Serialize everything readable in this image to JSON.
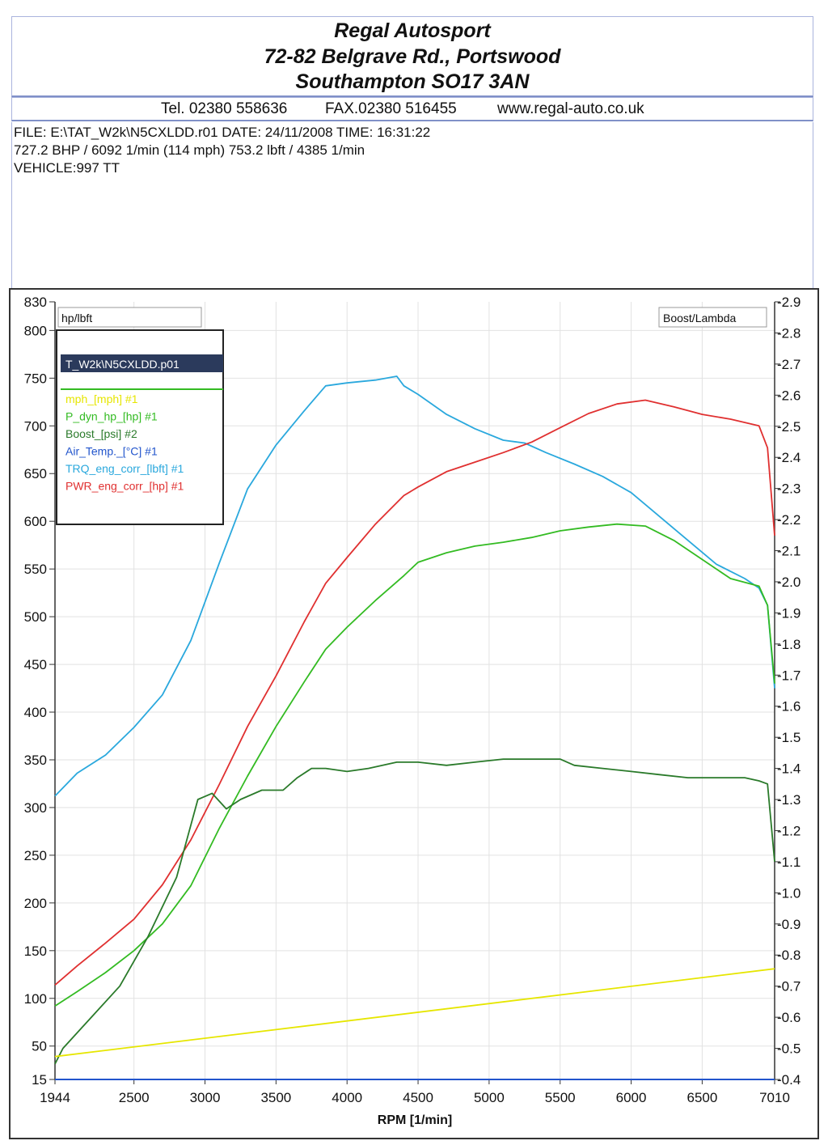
{
  "header": {
    "company": "Regal Autosport",
    "address1": "72-82 Belgrave Rd., Portswood",
    "address2": "Southampton SO17 3AN",
    "tel": "Tel. 02380 558636",
    "fax": "FAX.02380 516455",
    "web": "www.regal-auto.co.uk"
  },
  "info": {
    "line1": "FILE: E:\\TAT_W2k\\N5CXLDD.r01  DATE: 24/11/2008  TIME: 16:31:22",
    "line2": "727.2 BHP / 6092 1/min (114 mph)    753.2 lbft / 4385 1/min",
    "line3": "VEHICLE:997 TT"
  },
  "legend": {
    "left_axis_box": "hp/lbft",
    "right_axis_box": "Boost/Lambda",
    "file_entry": "T_W2k\\N5CXLDD.p01",
    "entries": [
      {
        "label": "mph_[mph] #1",
        "color": "#e6e600"
      },
      {
        "label": "P_dyn_hp_[hp] #1",
        "color": "#33bb22"
      },
      {
        "label": "Boost_[psi] #2",
        "color": "#2a7a2a"
      },
      {
        "label": "Air_Temp._[°C] #1",
        "color": "#2255cc"
      },
      {
        "label": "TRQ_eng_corr_[lbft] #1",
        "color": "#2aa8dd"
      },
      {
        "label": "PWR_eng_corr_[hp] #1",
        "color": "#e03030"
      }
    ]
  },
  "chart_data": {
    "type": "line",
    "xlabel": "RPM  [1/min]",
    "ylabel": "hp/lbft",
    "y2label": "Boost/Lambda",
    "xlim": [
      1944,
      7010
    ],
    "ylim": [
      15,
      830
    ],
    "y2lim": [
      -0.4,
      -2.9
    ],
    "x_ticks": [
      1944,
      2500,
      3000,
      3500,
      4000,
      4500,
      5000,
      5500,
      6000,
      6500,
      7010
    ],
    "y_ticks": [
      15,
      50,
      100,
      150,
      200,
      250,
      300,
      350,
      400,
      450,
      500,
      550,
      600,
      650,
      700,
      750,
      800,
      830
    ],
    "y2_ticks": [
      "-0.4",
      "-0.5",
      "-0.6",
      "-0.7",
      "-0.8",
      "-0.9",
      "-1.0",
      "-1.1",
      "-1.2",
      "-1.3",
      "-1.4",
      "-1.5",
      "-1.6",
      "-1.7",
      "-1.8",
      "-1.9",
      "-2.0",
      "-2.1",
      "-2.2",
      "-2.3",
      "-2.4",
      "-2.5",
      "-2.6",
      "-2.7",
      "-2.8",
      "-2.9"
    ],
    "grid": true,
    "series": [
      {
        "name": "TRQ_eng_corr_[lbft] #1",
        "color": "#2aa8dd",
        "x": [
          1944,
          2100,
          2300,
          2500,
          2700,
          2900,
          3100,
          3300,
          3500,
          3700,
          3850,
          4000,
          4200,
          4350,
          4400,
          4500,
          4700,
          4900,
          5100,
          5250,
          5400,
          5600,
          5800,
          6000,
          6200,
          6400,
          6600,
          6800,
          6900,
          6960,
          7010
        ],
        "y": [
          312,
          336,
          355,
          384,
          418,
          475,
          556,
          634,
          680,
          716,
          742,
          745,
          748,
          752,
          742,
          733,
          712,
          697,
          685,
          682,
          672,
          660,
          647,
          630,
          605,
          580,
          555,
          540,
          530,
          512,
          425
        ]
      },
      {
        "name": "PWR_eng_corr_[hp] #1",
        "color": "#e03030",
        "x": [
          1944,
          2100,
          2300,
          2500,
          2700,
          2900,
          3100,
          3300,
          3500,
          3700,
          3850,
          4000,
          4200,
          4400,
          4500,
          4700,
          4900,
          5100,
          5300,
          5500,
          5700,
          5900,
          6100,
          6300,
          6500,
          6700,
          6900,
          6960,
          7010
        ],
        "y": [
          114,
          134,
          158,
          183,
          219,
          266,
          324,
          385,
          438,
          495,
          535,
          562,
          597,
          627,
          636,
          652,
          662,
          672,
          683,
          698,
          713,
          723,
          727,
          720,
          712,
          707,
          700,
          677,
          585
        ]
      },
      {
        "name": "P_dyn_hp_[hp] #1",
        "color": "#33bb22",
        "x": [
          1944,
          2100,
          2300,
          2500,
          2700,
          2900,
          3100,
          3300,
          3500,
          3700,
          3850,
          4000,
          4200,
          4400,
          4500,
          4700,
          4900,
          5100,
          5300,
          5500,
          5700,
          5900,
          6100,
          6300,
          6500,
          6700,
          6900,
          6960,
          7010
        ],
        "y": [
          92,
          107,
          127,
          150,
          178,
          218,
          278,
          333,
          385,
          432,
          466,
          489,
          517,
          543,
          557,
          567,
          574,
          578,
          583,
          590,
          594,
          597,
          595,
          580,
          560,
          540,
          532,
          512,
          430
        ]
      },
      {
        "name": "Boost_[psi] #2",
        "color": "#2a7a2a",
        "x": [
          1944,
          2000,
          2200,
          2400,
          2600,
          2800,
          2950,
          3050,
          3150,
          3250,
          3400,
          3550,
          3650,
          3750,
          3850,
          4000,
          4150,
          4350,
          4500,
          4700,
          4900,
          5100,
          5300,
          5500,
          5600,
          5800,
          6000,
          6200,
          6400,
          6600,
          6800,
          6900,
          6960,
          7010
        ],
        "y": [
          -0.45,
          -0.5,
          -0.6,
          -0.7,
          -0.86,
          -1.05,
          -1.3,
          -1.32,
          -1.27,
          -1.3,
          -1.33,
          -1.33,
          -1.37,
          -1.4,
          -1.4,
          -1.39,
          -1.4,
          -1.42,
          -1.42,
          -1.41,
          -1.42,
          -1.43,
          -1.43,
          -1.43,
          -1.41,
          -1.4,
          -1.39,
          -1.38,
          -1.37,
          -1.37,
          -1.37,
          -1.36,
          -1.35,
          -1.1
        ]
      },
      {
        "name": "mph_[mph] #1",
        "color": "#e6e600",
        "x": [
          1944,
          7010
        ],
        "y": [
          39,
          131
        ]
      },
      {
        "name": "Air_Temp._[°C] #1",
        "color": "#2255cc",
        "x": [
          1944,
          7010
        ],
        "y": [
          15,
          15
        ]
      }
    ]
  }
}
